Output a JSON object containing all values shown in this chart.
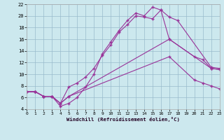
{
  "background_color": "#cce8ee",
  "line_color": "#993399",
  "grid_color": "#99bbcc",
  "xlabel": "Windchill (Refroidissement éolien,°C)",
  "xmin": 0,
  "xmax": 23,
  "ymin": 4,
  "ymax": 22,
  "yticks": [
    4,
    6,
    8,
    10,
    12,
    14,
    16,
    18,
    20,
    22
  ],
  "xticks": [
    0,
    1,
    2,
    3,
    4,
    5,
    6,
    7,
    8,
    9,
    10,
    11,
    12,
    13,
    14,
    15,
    16,
    17,
    18,
    19,
    20,
    21,
    22,
    23
  ],
  "line1_x": [
    0,
    1,
    2,
    3,
    4,
    5,
    6,
    7,
    8,
    9,
    10,
    11,
    12,
    13,
    14,
    15,
    16,
    17,
    22,
    23
  ],
  "line1_y": [
    7.0,
    7.0,
    6.2,
    6.2,
    5.0,
    7.8,
    8.5,
    9.5,
    11.0,
    13.2,
    15.0,
    17.2,
    18.5,
    20.0,
    19.8,
    19.5,
    21.0,
    16.0,
    11.0,
    10.8
  ],
  "line2_x": [
    0,
    1,
    2,
    3,
    4,
    5,
    6,
    7,
    8,
    9,
    10,
    11,
    12,
    13,
    14,
    15,
    16,
    17,
    18,
    22,
    23
  ],
  "line2_y": [
    7.0,
    7.0,
    6.2,
    6.2,
    4.5,
    5.0,
    6.0,
    7.8,
    10.0,
    13.5,
    15.5,
    17.5,
    19.2,
    20.5,
    20.0,
    21.5,
    21.0,
    19.8,
    19.2,
    11.2,
    11.0
  ],
  "line3_x": [
    0,
    1,
    2,
    3,
    4,
    5,
    17,
    20,
    21,
    22,
    23
  ],
  "line3_y": [
    7.0,
    7.0,
    6.2,
    6.2,
    5.0,
    6.2,
    16.0,
    13.0,
    12.5,
    11.0,
    10.8
  ],
  "line4_x": [
    0,
    1,
    2,
    3,
    4,
    5,
    17,
    20,
    21,
    22,
    23
  ],
  "line4_y": [
    7.0,
    7.0,
    6.2,
    6.2,
    5.0,
    6.2,
    13.0,
    9.0,
    8.5,
    8.0,
    7.5
  ]
}
